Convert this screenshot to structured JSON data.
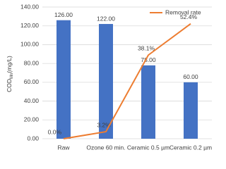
{
  "chart_data": {
    "type": "bar",
    "ylabel": {
      "main": "COD",
      "sub": "Mn",
      "unit": "(mg/L)"
    },
    "categories": [
      "Raw",
      "Ozone 60 min.",
      "Ceramic 0.5 µm",
      "Ceramic 0.2 µm"
    ],
    "series": [
      {
        "type": "bar",
        "color": "#4472c4",
        "values": [
          126,
          122,
          78,
          60
        ],
        "value_labels": [
          "126.00",
          "122.00",
          "78.00",
          "60.00"
        ]
      },
      {
        "type": "line",
        "name": "Removal rate",
        "color": "#ed7d31",
        "axis": "y2",
        "values": [
          0,
          3.2,
          38.1,
          52.4
        ],
        "value_labels": [
          "0.0%",
          "3.2%",
          "38.1%",
          "52.4%"
        ]
      }
    ],
    "ylim": [
      0,
      140
    ],
    "yticks": [
      {
        "value": 0,
        "label": "0.00"
      },
      {
        "value": 20,
        "label": "20.00"
      },
      {
        "value": 40,
        "label": "40.00"
      },
      {
        "value": 60,
        "label": "60.00"
      },
      {
        "value": 80,
        "label": "80.00"
      },
      {
        "value": 100,
        "label": "100.00"
      },
      {
        "value": 120,
        "label": "120.00"
      },
      {
        "value": 140,
        "label": "140.00"
      }
    ],
    "y2lim": [
      0,
      60
    ],
    "grid": true,
    "legend": "top-right"
  }
}
